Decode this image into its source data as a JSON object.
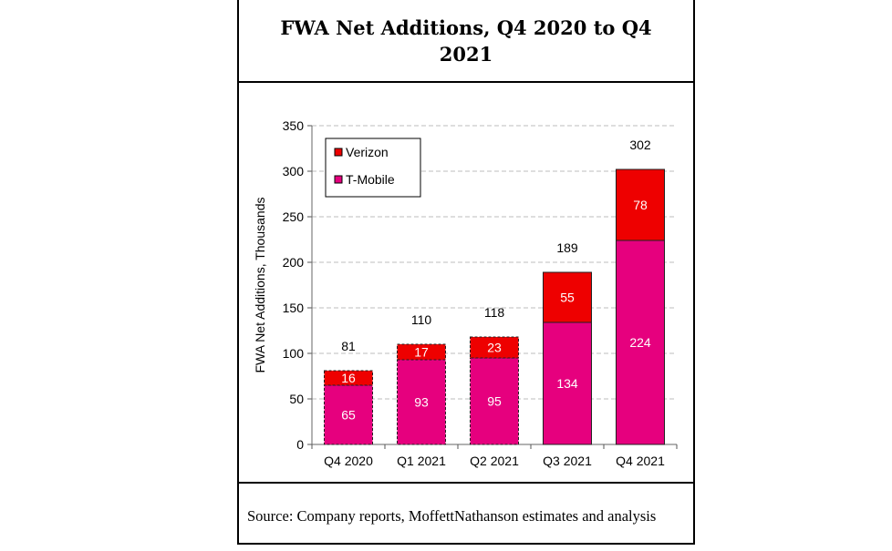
{
  "header": {
    "title": "FWA Net Additions, Q4 2020 to Q4 2021"
  },
  "footer": {
    "source": "Source: Company reports, MoffettNathanson estimates and analysis"
  },
  "chart_data": {
    "type": "bar",
    "stacked": true,
    "title": "FWA Net Additions, Q4 2020 to Q4 2021",
    "xlabel": "",
    "ylabel": "FWA Net Additions, Thousands",
    "ylim": [
      0,
      350
    ],
    "yticks": [
      0,
      50,
      100,
      150,
      200,
      250,
      300,
      350
    ],
    "grid": true,
    "legend_position": "top-left",
    "categories": [
      "Q4 2020",
      "Q1 2021",
      "Q2 2021",
      "Q3 2021",
      "Q4 2021"
    ],
    "series": [
      {
        "name": "T-Mobile",
        "color": "#E6007E",
        "values": [
          65,
          93,
          95,
          134,
          224
        ]
      },
      {
        "name": "Verizon",
        "color": "#EE0000",
        "values": [
          16,
          17,
          23,
          55,
          78
        ]
      }
    ],
    "totals": [
      81,
      110,
      118,
      189,
      302
    ],
    "legend_order": [
      "Verizon",
      "T-Mobile"
    ]
  }
}
